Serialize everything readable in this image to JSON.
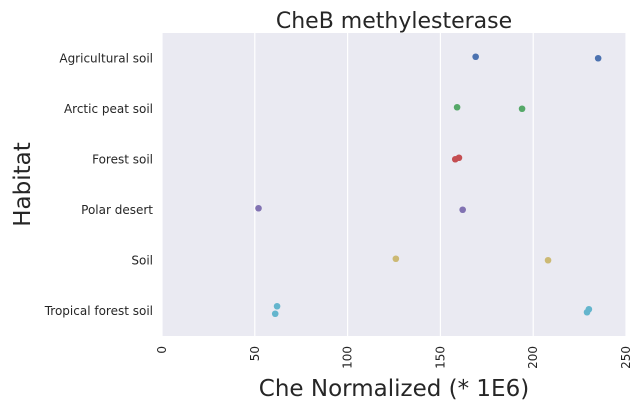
{
  "chart_data": {
    "type": "scatter",
    "subtype": "strip",
    "title": "CheB methylesterase",
    "xlabel": "Che Normalized (* 1E6)",
    "ylabel": "Habitat",
    "xlim": [
      0,
      250
    ],
    "xticks": [
      "0",
      "50",
      "100",
      "150",
      "200",
      "250"
    ],
    "xtick_values": [
      0,
      50,
      100,
      150,
      200,
      250
    ],
    "xtick_rotation": "vertical",
    "categories": [
      "Agricultural soil",
      "Arctic peat soil",
      "Forest soil",
      "Polar desert",
      "Soil",
      "Tropical forest soil"
    ],
    "grid": "vertical lines on x ticks",
    "style": "seaborn darkgrid",
    "background_color": "#eaeaf2",
    "grid_color": "#ffffff",
    "series": [
      {
        "category": "Agricultural soil",
        "color": "#4c72b0",
        "values": [
          169,
          235
        ]
      },
      {
        "category": "Arctic peat soil",
        "color": "#55a868",
        "values": [
          159,
          194
        ]
      },
      {
        "category": "Forest soil",
        "color": "#c44e52",
        "values": [
          160,
          158
        ]
      },
      {
        "category": "Polar desert",
        "color": "#8172b2",
        "values": [
          52,
          162
        ]
      },
      {
        "category": "Soil",
        "color": "#ccb974",
        "values": [
          126,
          208
        ]
      },
      {
        "category": "Tropical forest soil",
        "color": "#64b5cd",
        "values": [
          62,
          61,
          230,
          229
        ]
      }
    ]
  }
}
